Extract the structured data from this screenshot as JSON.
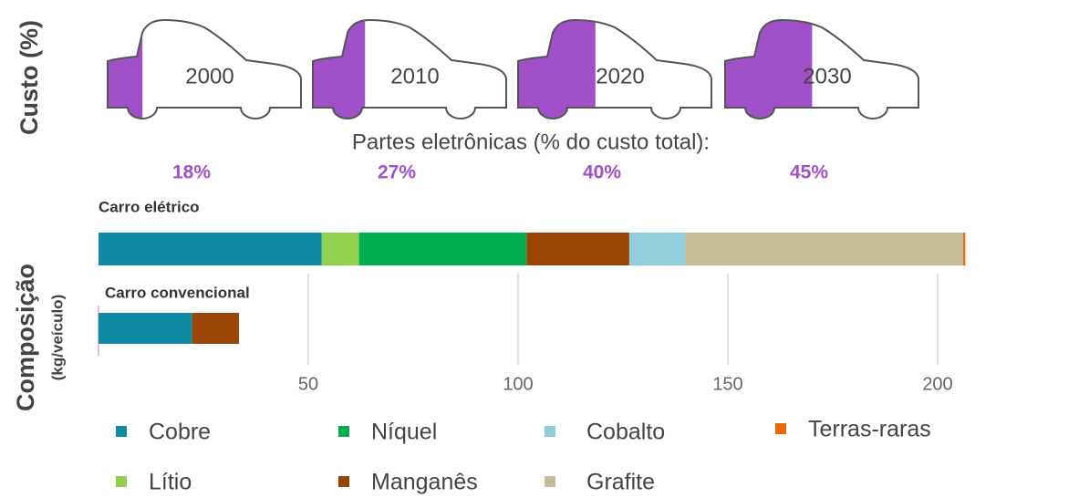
{
  "chart_data": [
    {
      "type": "car-fill",
      "ylabel": "Custo (%)",
      "subtitle": "Partes eletrônicas (% do custo total):",
      "categories": [
        "2000",
        "2010",
        "2020",
        "2030"
      ],
      "values": [
        18,
        27,
        40,
        45
      ],
      "value_labels": [
        "18%",
        "27%",
        "40%",
        "45%"
      ],
      "color": "#a050c8"
    },
    {
      "type": "stacked-hbar",
      "ylabel": "Composição",
      "ylabel_unit": "(kg/veículo)",
      "categories": [
        "Carro elétrico",
        "Carro convencional"
      ],
      "series": [
        {
          "name": "Cobre",
          "color": "#0e8ba3",
          "values": [
            53.2,
            22.3
          ]
        },
        {
          "name": "Lítio",
          "color": "#92d050",
          "values": [
            8.9,
            0
          ]
        },
        {
          "name": "Níquel",
          "color": "#00b050",
          "values": [
            39.9,
            0
          ]
        },
        {
          "name": "Manganês",
          "color": "#9a4504",
          "values": [
            24.5,
            11.2
          ]
        },
        {
          "name": "Cobalto",
          "color": "#92cddc",
          "values": [
            13.3,
            0
          ]
        },
        {
          "name": "Grafite",
          "color": "#c4bd97",
          "values": [
            66.3,
            0
          ]
        },
        {
          "name": "Terras-raras",
          "color": "#e36c09",
          "values": [
            0.5,
            0
          ]
        }
      ],
      "xlim": [
        0,
        210
      ],
      "xticks": [
        50,
        100,
        150,
        200
      ],
      "grid": true
    }
  ]
}
